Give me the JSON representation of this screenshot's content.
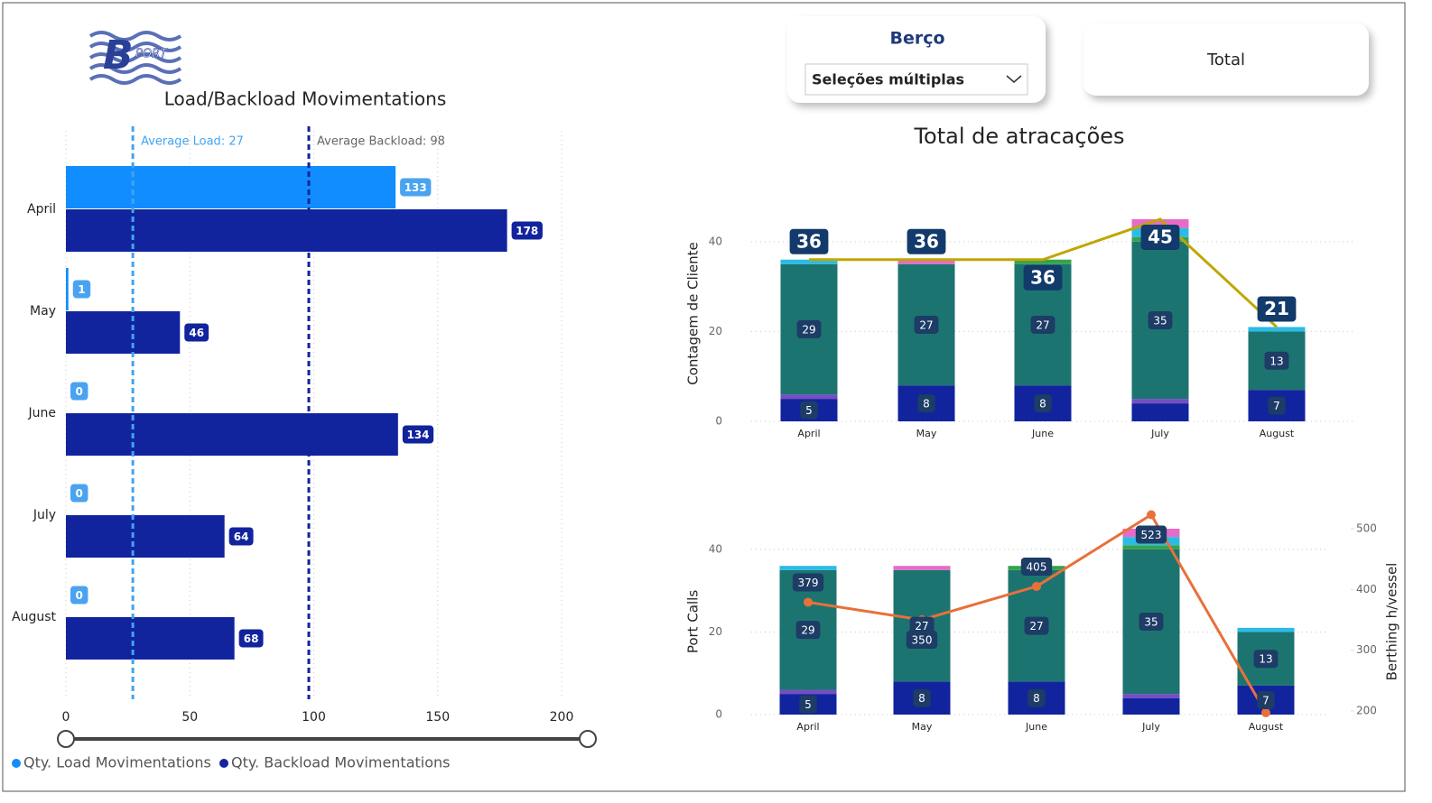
{
  "logo": {
    "letter": "B",
    "word": "PORT"
  },
  "slicer": {
    "title": "Berço",
    "value": "Seleções múltiplas"
  },
  "button": {
    "label": "Total"
  },
  "chart_data": [
    {
      "type": "hbar",
      "title": "Load/Backload Movimentations",
      "categories": [
        "April",
        "May",
        "June",
        "July",
        "August"
      ],
      "series": [
        {
          "name": "Qty. Load Movimentations",
          "color": "#118dff",
          "label_color": "#4aa3f0",
          "values": [
            133,
            1,
            0,
            0,
            0
          ]
        },
        {
          "name": "Qty. Backload Movimentations",
          "color": "#12239e",
          "label_color": "#12239e",
          "values": [
            178,
            46,
            134,
            64,
            68
          ]
        }
      ],
      "xlim": [
        0,
        200
      ],
      "xticks": [
        0,
        50,
        100,
        150,
        200
      ],
      "grid": true,
      "labels": true,
      "legend": "bottom-left",
      "reference_lines": [
        {
          "label": "Average Load: 27",
          "value": 27,
          "color": "#41a4f0"
        },
        {
          "label": "Average Backload: 98",
          "value": 98,
          "color": "#12239e"
        }
      ]
    },
    {
      "type": "combo",
      "title": "Total de atracações",
      "ylabel": "Contagem de Cliente",
      "categories": [
        "April",
        "May",
        "June",
        "July",
        "August"
      ],
      "ylim": [
        0,
        48
      ],
      "yticks": [
        0,
        20,
        40
      ],
      "grid": true,
      "series": [
        {
          "type": "bar",
          "color": "#12239e",
          "values": [
            5,
            8,
            8,
            4,
            7
          ],
          "value_labels": [
            "5",
            "8",
            "8",
            null,
            "7"
          ]
        },
        {
          "type": "bar",
          "color": "#744ec2",
          "values": [
            1,
            0,
            0,
            1,
            0
          ]
        },
        {
          "type": "bar",
          "color": "#1c7470",
          "values": [
            29,
            27,
            27,
            35,
            13
          ],
          "value_labels": [
            "29",
            "27",
            "27",
            "35",
            "13"
          ]
        },
        {
          "type": "bar",
          "color": "#37a24b",
          "values": [
            0,
            0,
            1,
            1,
            0
          ]
        },
        {
          "type": "bar",
          "color": "#2bbbe6",
          "values": [
            1,
            0,
            0,
            2,
            1
          ]
        },
        {
          "type": "bar",
          "color": "#e66cc7",
          "values": [
            0,
            1,
            0,
            2,
            0
          ]
        },
        {
          "type": "line",
          "color": "#c0a600",
          "values": [
            36,
            36,
            36,
            45,
            21
          ],
          "value_labels": [
            "36",
            "36",
            "36",
            "45",
            "21"
          ]
        }
      ]
    },
    {
      "type": "combo",
      "ylabel": "Port Calls",
      "y2label": "Berthing h/vessel",
      "categories": [
        "April",
        "May",
        "June",
        "July",
        "August"
      ],
      "ylim": [
        0,
        45
      ],
      "yticks": [
        0,
        20,
        40
      ],
      "y2lim": [
        194,
        500
      ],
      "y2ticks": [
        200,
        300,
        400,
        500
      ],
      "grid": true,
      "series": [
        {
          "type": "bar",
          "color": "#12239e",
          "values": [
            5,
            8,
            8,
            4,
            7
          ],
          "value_labels": [
            "5",
            "8",
            "8",
            null,
            "7"
          ]
        },
        {
          "type": "bar",
          "color": "#744ec2",
          "values": [
            1,
            0,
            0,
            1,
            0
          ]
        },
        {
          "type": "bar",
          "color": "#1c7470",
          "values": [
            29,
            27,
            27,
            35,
            13
          ],
          "value_labels": [
            "29",
            "27",
            "27",
            "35",
            "13"
          ]
        },
        {
          "type": "bar",
          "color": "#37a24b",
          "values": [
            0,
            0,
            1,
            1,
            0
          ]
        },
        {
          "type": "bar",
          "color": "#2bbbe6",
          "values": [
            1,
            0,
            0,
            2,
            1
          ]
        },
        {
          "type": "bar",
          "color": "#e66cc7",
          "values": [
            0,
            1,
            0,
            2,
            0
          ]
        },
        {
          "type": "line",
          "axis": "y2",
          "color": "#e8703a",
          "markers": true,
          "values": [
            379,
            350,
            405,
            523,
            197
          ],
          "value_labels": [
            "379",
            "350",
            "405",
            "523",
            null
          ]
        }
      ]
    }
  ]
}
